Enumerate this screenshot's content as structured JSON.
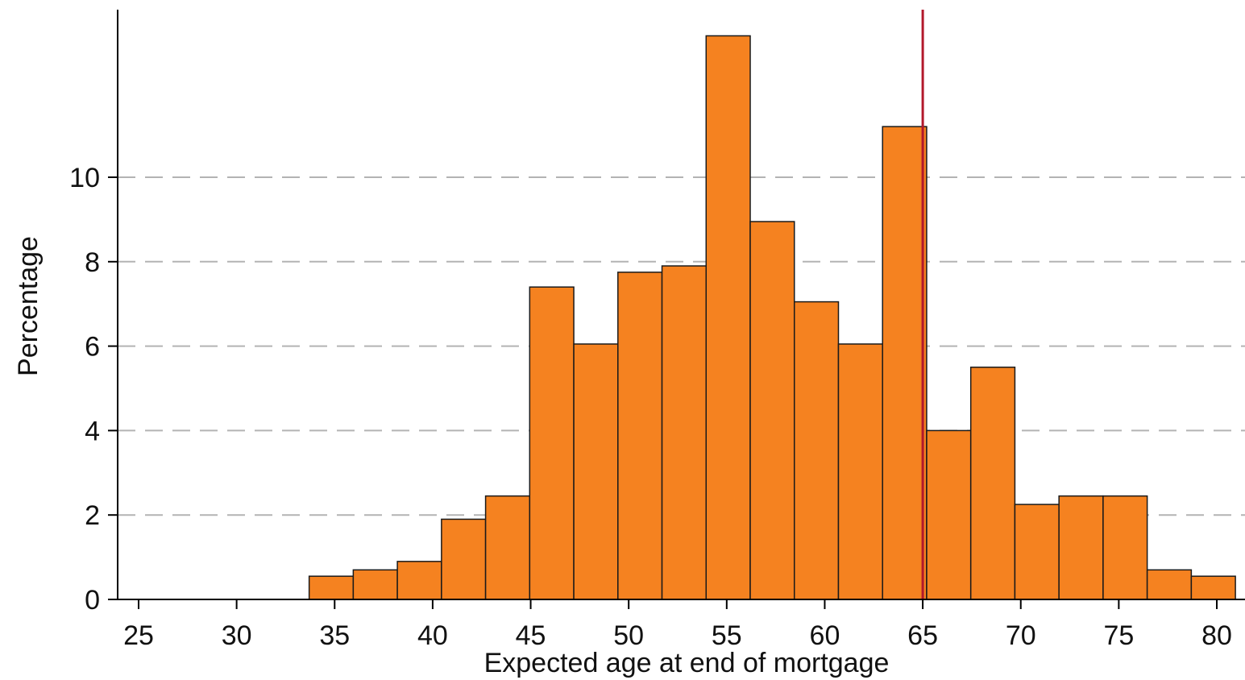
{
  "chart_data": {
    "type": "bar",
    "xlabel": "Expected age at end of mortgage",
    "ylabel": "Percentage",
    "xlim": [
      24,
      81
    ],
    "ylim": [
      0,
      13.7
    ],
    "x_ticks": [
      "25",
      "30",
      "35",
      "40",
      "45",
      "50",
      "55",
      "60",
      "65",
      "70",
      "75",
      "80"
    ],
    "y_ticks": [
      "0",
      "2",
      "4",
      "6",
      "8",
      "10"
    ],
    "grid": "horizontal dashed",
    "bin_edges": [
      33.7,
      35.95,
      38.2,
      40.45,
      42.7,
      44.95,
      47.2,
      49.45,
      51.7,
      53.95,
      56.2,
      58.45,
      60.7,
      62.95,
      65.2,
      67.45,
      69.7,
      71.95,
      74.2,
      76.45,
      78.7,
      80.95
    ],
    "values": [
      0.55,
      0.7,
      0.9,
      1.9,
      2.45,
      7.4,
      6.05,
      7.75,
      7.9,
      13.35,
      8.95,
      7.05,
      6.05,
      11.2,
      4.0,
      5.5,
      2.25,
      2.45,
      2.45,
      0.7,
      0.55
    ],
    "reference_line": {
      "x": 65,
      "color": "#b2182b"
    },
    "bar_color": "#f58220",
    "bar_edge_color": "#1a1a1a",
    "grid_color": "#b3b3b3"
  }
}
